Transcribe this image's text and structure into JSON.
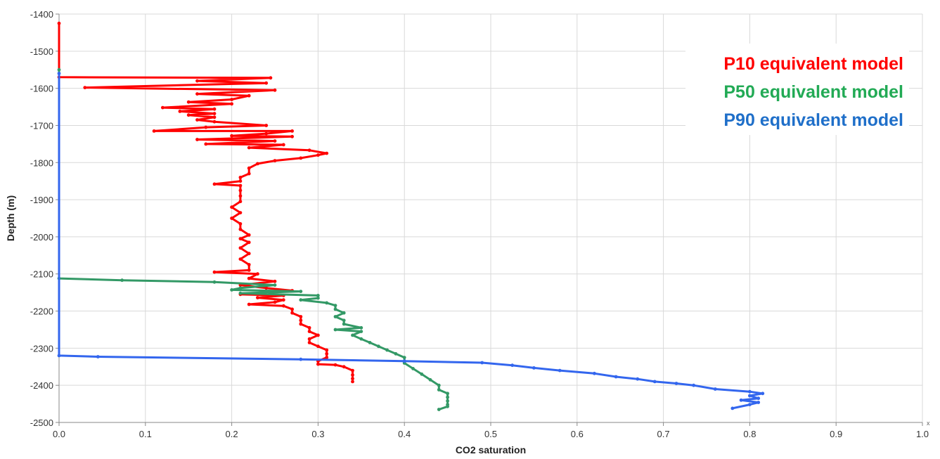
{
  "chart_data": {
    "type": "line",
    "xlabel": "CO2 saturation",
    "ylabel": "Depth (m)",
    "xlim": [
      0,
      1
    ],
    "ylim": [
      -2500,
      -1400
    ],
    "xticks": [
      "0.0",
      "0.1",
      "0.2",
      "0.3",
      "0.4",
      "0.5",
      "0.6",
      "0.7",
      "0.8",
      "0.9",
      "1.0"
    ],
    "yticks": [
      "-1400",
      "-1500",
      "-1600",
      "-1700",
      "-1800",
      "-1900",
      "-2000",
      "-2100",
      "-2200",
      "-2300",
      "-2400",
      "-2500"
    ],
    "x_axis_corner_label": "x",
    "grid": true,
    "legend_position": "top-right",
    "colors": {
      "p10": "#ff0000",
      "p50": "#339966",
      "p90": "#3366ee"
    },
    "series": [
      {
        "name": "P10 equivalent model",
        "color": "#ff0000",
        "points": [
          [
            0.0,
            -1425
          ],
          [
            0.0,
            -1570
          ],
          [
            0.245,
            -1572
          ],
          [
            0.16,
            -1580
          ],
          [
            0.24,
            -1586
          ],
          [
            0.03,
            -1598
          ],
          [
            0.25,
            -1605
          ],
          [
            0.16,
            -1615
          ],
          [
            0.22,
            -1620
          ],
          [
            0.2,
            -1630
          ],
          [
            0.15,
            -1637
          ],
          [
            0.2,
            -1642
          ],
          [
            0.12,
            -1652
          ],
          [
            0.18,
            -1656
          ],
          [
            0.14,
            -1662
          ],
          [
            0.18,
            -1668
          ],
          [
            0.15,
            -1672
          ],
          [
            0.18,
            -1678
          ],
          [
            0.16,
            -1685
          ],
          [
            0.18,
            -1690
          ],
          [
            0.24,
            -1700
          ],
          [
            0.17,
            -1705
          ],
          [
            0.11,
            -1715
          ],
          [
            0.27,
            -1715
          ],
          [
            0.24,
            -1722
          ],
          [
            0.2,
            -1728
          ],
          [
            0.27,
            -1730
          ],
          [
            0.16,
            -1738
          ],
          [
            0.25,
            -1742
          ],
          [
            0.17,
            -1750
          ],
          [
            0.26,
            -1752
          ],
          [
            0.22,
            -1760
          ],
          [
            0.29,
            -1767
          ],
          [
            0.31,
            -1775
          ],
          [
            0.3,
            -1780
          ],
          [
            0.28,
            -1788
          ],
          [
            0.25,
            -1795
          ],
          [
            0.23,
            -1803
          ],
          [
            0.22,
            -1815
          ],
          [
            0.22,
            -1830
          ],
          [
            0.21,
            -1840
          ],
          [
            0.21,
            -1850
          ],
          [
            0.18,
            -1858
          ],
          [
            0.21,
            -1862
          ],
          [
            0.21,
            -1875
          ],
          [
            0.21,
            -1890
          ],
          [
            0.21,
            -1905
          ],
          [
            0.2,
            -1920
          ],
          [
            0.21,
            -1935
          ],
          [
            0.2,
            -1950
          ],
          [
            0.21,
            -1965
          ],
          [
            0.21,
            -1980
          ],
          [
            0.22,
            -1995
          ],
          [
            0.21,
            -2005
          ],
          [
            0.22,
            -2015
          ],
          [
            0.21,
            -2030
          ],
          [
            0.22,
            -2045
          ],
          [
            0.21,
            -2060
          ],
          [
            0.22,
            -2075
          ],
          [
            0.22,
            -2090
          ],
          [
            0.18,
            -2095
          ],
          [
            0.23,
            -2100
          ],
          [
            0.22,
            -2112
          ],
          [
            0.25,
            -2120
          ],
          [
            0.21,
            -2130
          ],
          [
            0.24,
            -2138
          ],
          [
            0.27,
            -2145
          ],
          [
            0.21,
            -2155
          ],
          [
            0.26,
            -2158
          ],
          [
            0.23,
            -2164
          ],
          [
            0.26,
            -2170
          ],
          [
            0.25,
            -2176
          ],
          [
            0.22,
            -2182
          ],
          [
            0.26,
            -2186
          ],
          [
            0.27,
            -2195
          ],
          [
            0.27,
            -2205
          ],
          [
            0.28,
            -2215
          ],
          [
            0.28,
            -2225
          ],
          [
            0.28,
            -2235
          ],
          [
            0.29,
            -2245
          ],
          [
            0.29,
            -2255
          ],
          [
            0.3,
            -2265
          ],
          [
            0.29,
            -2275
          ],
          [
            0.29,
            -2285
          ],
          [
            0.3,
            -2295
          ],
          [
            0.31,
            -2305
          ],
          [
            0.31,
            -2315
          ],
          [
            0.31,
            -2325
          ],
          [
            0.3,
            -2335
          ],
          [
            0.3,
            -2343
          ],
          [
            0.32,
            -2345
          ],
          [
            0.33,
            -2350
          ],
          [
            0.34,
            -2360
          ],
          [
            0.34,
            -2372
          ],
          [
            0.34,
            -2382
          ],
          [
            0.34,
            -2390
          ]
        ]
      },
      {
        "name": "P50 equivalent model",
        "color": "#339966",
        "points": [
          [
            0.0,
            -1550
          ],
          [
            0.0,
            -2112
          ],
          [
            0.073,
            -2117
          ],
          [
            0.18,
            -2122
          ],
          [
            0.25,
            -2130
          ],
          [
            0.21,
            -2138
          ],
          [
            0.2,
            -2143
          ],
          [
            0.28,
            -2147
          ],
          [
            0.21,
            -2152
          ],
          [
            0.3,
            -2158
          ],
          [
            0.3,
            -2165
          ],
          [
            0.28,
            -2170
          ],
          [
            0.31,
            -2178
          ],
          [
            0.32,
            -2185
          ],
          [
            0.32,
            -2195
          ],
          [
            0.33,
            -2205
          ],
          [
            0.32,
            -2215
          ],
          [
            0.33,
            -2225
          ],
          [
            0.33,
            -2235
          ],
          [
            0.35,
            -2245
          ],
          [
            0.32,
            -2250
          ],
          [
            0.35,
            -2255
          ],
          [
            0.34,
            -2265
          ],
          [
            0.35,
            -2275
          ],
          [
            0.36,
            -2285
          ],
          [
            0.37,
            -2295
          ],
          [
            0.38,
            -2305
          ],
          [
            0.39,
            -2315
          ],
          [
            0.4,
            -2325
          ],
          [
            0.4,
            -2340
          ],
          [
            0.41,
            -2355
          ],
          [
            0.42,
            -2370
          ],
          [
            0.43,
            -2385
          ],
          [
            0.44,
            -2400
          ],
          [
            0.44,
            -2412
          ],
          [
            0.45,
            -2422
          ],
          [
            0.45,
            -2432
          ],
          [
            0.45,
            -2442
          ],
          [
            0.45,
            -2452
          ],
          [
            0.45,
            -2457
          ],
          [
            0.44,
            -2465
          ]
        ]
      },
      {
        "name": "P90 equivalent model",
        "color": "#3366ee",
        "points": [
          [
            0.0,
            -1560
          ],
          [
            0.0,
            -2320
          ],
          [
            0.045,
            -2323
          ],
          [
            0.28,
            -2330
          ],
          [
            0.4,
            -2335
          ],
          [
            0.49,
            -2339
          ],
          [
            0.525,
            -2346
          ],
          [
            0.55,
            -2353
          ],
          [
            0.58,
            -2360
          ],
          [
            0.62,
            -2368
          ],
          [
            0.645,
            -2377
          ],
          [
            0.67,
            -2383
          ],
          [
            0.69,
            -2390
          ],
          [
            0.715,
            -2395
          ],
          [
            0.735,
            -2400
          ],
          [
            0.76,
            -2410
          ],
          [
            0.8,
            -2417
          ],
          [
            0.815,
            -2422
          ],
          [
            0.8,
            -2428
          ],
          [
            0.81,
            -2435
          ],
          [
            0.79,
            -2440
          ],
          [
            0.81,
            -2446
          ],
          [
            0.8,
            -2452
          ],
          [
            0.78,
            -2462
          ]
        ]
      }
    ]
  }
}
